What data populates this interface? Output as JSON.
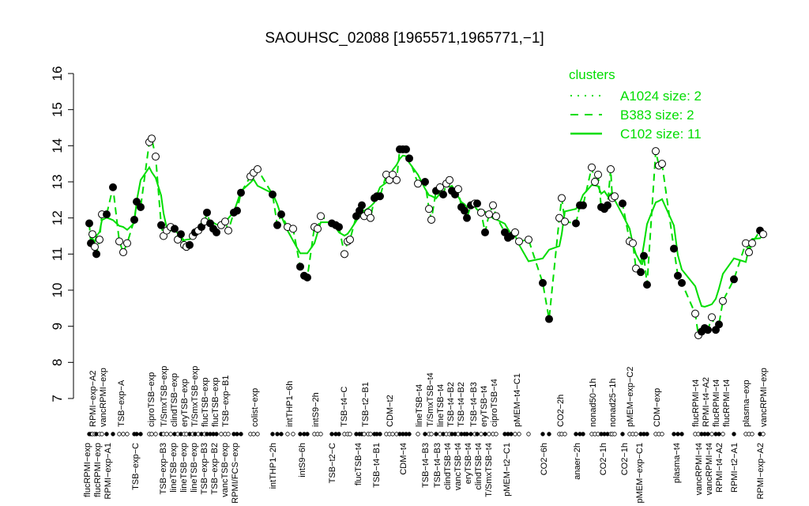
{
  "chart_data": {
    "type": "line",
    "title": "SAOUHSC_02088 [1965571,1965771,−1]",
    "xlabel": "",
    "ylabel": "",
    "ylim": [
      7,
      16
    ],
    "yticks": [
      7,
      8,
      9,
      10,
      11,
      12,
      13,
      14,
      15,
      16
    ],
    "xlim": [
      0,
      880
    ],
    "legend": {
      "title": "clusters",
      "placement": "top-right",
      "entries": [
        {
          "label": "A1024 size: 2",
          "style": "dotted"
        },
        {
          "label": "B383 size: 2",
          "style": "dashed"
        },
        {
          "label": "C102 size: 11",
          "style": "solid"
        }
      ]
    },
    "line_color": "#00dd00",
    "points": [
      [
        13,
        11.85,
        1
      ],
      [
        15,
        11.3,
        1
      ],
      [
        17,
        11.55,
        0
      ],
      [
        20,
        11.2,
        0
      ],
      [
        22,
        11.0,
        1
      ],
      [
        26,
        11.4,
        0
      ],
      [
        29,
        12.1,
        0
      ],
      [
        35,
        12.1,
        1
      ],
      [
        43,
        12.85,
        1
      ],
      [
        51,
        11.35,
        0
      ],
      [
        56,
        11.05,
        0
      ],
      [
        61,
        11.3,
        0
      ],
      [
        70,
        11.95,
        1
      ],
      [
        73,
        12.45,
        1
      ],
      [
        78,
        12.3,
        1
      ],
      [
        89,
        14.1,
        0
      ],
      [
        92,
        14.2,
        0
      ],
      [
        97,
        13.7,
        0
      ],
      [
        104,
        11.8,
        1
      ],
      [
        107,
        11.5,
        0
      ],
      [
        111,
        11.65,
        0
      ],
      [
        116,
        11.75,
        0
      ],
      [
        121,
        11.7,
        1
      ],
      [
        125,
        11.4,
        0
      ],
      [
        129,
        11.55,
        1
      ],
      [
        133,
        11.25,
        0
      ],
      [
        136,
        11.2,
        0
      ],
      [
        140,
        11.25,
        1
      ],
      [
        144,
        11.5,
        0
      ],
      [
        147,
        11.6,
        1
      ],
      [
        151,
        11.65,
        0
      ],
      [
        155,
        11.75,
        1
      ],
      [
        159,
        11.9,
        0
      ],
      [
        162,
        12.15,
        1
      ],
      [
        166,
        11.85,
        1
      ],
      [
        170,
        11.7,
        1
      ],
      [
        174,
        11.6,
        1
      ],
      [
        180,
        11.8,
        0
      ],
      [
        185,
        11.9,
        0
      ],
      [
        189,
        11.65,
        0
      ],
      [
        196,
        12.15,
        1
      ],
      [
        200,
        12.2,
        1
      ],
      [
        205,
        12.7,
        1
      ],
      [
        217,
        13.15,
        0
      ],
      [
        221,
        13.25,
        0
      ],
      [
        226,
        13.35,
        0
      ],
      [
        245,
        12.65,
        1
      ],
      [
        251,
        11.8,
        1
      ],
      [
        256,
        12.1,
        1
      ],
      [
        264,
        11.75,
        0
      ],
      [
        271,
        11.7,
        0
      ],
      [
        280,
        10.65,
        1
      ],
      [
        285,
        10.4,
        1
      ],
      [
        289,
        10.35,
        1
      ],
      [
        298,
        11.75,
        0
      ],
      [
        302,
        11.7,
        0
      ],
      [
        306,
        12.05,
        0
      ],
      [
        320,
        11.85,
        1
      ],
      [
        325,
        11.8,
        1
      ],
      [
        329,
        11.75,
        1
      ],
      [
        336,
        11.0,
        0
      ],
      [
        340,
        11.35,
        0
      ],
      [
        343,
        11.4,
        0
      ],
      [
        351,
        12.05,
        1
      ],
      [
        355,
        12.2,
        1
      ],
      [
        358,
        12.35,
        1
      ],
      [
        361,
        12.05,
        0
      ],
      [
        366,
        12.15,
        0
      ],
      [
        369,
        12.0,
        0
      ],
      [
        374,
        12.55,
        1
      ],
      [
        377,
        12.6,
        1
      ],
      [
        381,
        12.6,
        1
      ],
      [
        389,
        13.2,
        0
      ],
      [
        393,
        13.05,
        0
      ],
      [
        397,
        13.2,
        0
      ],
      [
        402,
        13.05,
        0
      ],
      [
        406,
        13.9,
        1
      ],
      [
        410,
        13.9,
        1
      ],
      [
        414,
        13.9,
        1
      ],
      [
        418,
        13.65,
        1
      ],
      [
        429,
        12.95,
        0
      ],
      [
        438,
        13.0,
        1
      ],
      [
        443,
        12.25,
        0
      ],
      [
        446,
        11.95,
        0
      ],
      [
        452,
        12.75,
        1
      ],
      [
        457,
        12.85,
        0
      ],
      [
        461,
        12.65,
        1
      ],
      [
        465,
        12.95,
        0
      ],
      [
        469,
        13.05,
        0
      ],
      [
        472,
        12.75,
        1
      ],
      [
        476,
        12.65,
        1
      ],
      [
        480,
        12.8,
        0
      ],
      [
        484,
        12.3,
        1
      ],
      [
        488,
        12.2,
        1
      ],
      [
        491,
        12.0,
        1
      ],
      [
        496,
        12.35,
        1
      ],
      [
        501,
        12.4,
        0
      ],
      [
        504,
        12.4,
        1
      ],
      [
        509,
        12.15,
        0
      ],
      [
        514,
        11.6,
        1
      ],
      [
        519,
        12.1,
        0
      ],
      [
        524,
        12.35,
        0
      ],
      [
        528,
        12.05,
        0
      ],
      [
        539,
        11.6,
        1
      ],
      [
        543,
        11.45,
        1
      ],
      [
        547,
        11.5,
        1
      ],
      [
        552,
        11.6,
        0
      ],
      [
        557,
        11.35,
        0
      ],
      [
        569,
        11.4,
        0
      ],
      [
        587,
        10.2,
        1
      ],
      [
        595,
        9.2,
        1
      ],
      [
        608,
        12.0,
        0
      ],
      [
        611,
        12.55,
        0
      ],
      [
        615,
        11.9,
        0
      ],
      [
        629,
        11.85,
        1
      ],
      [
        634,
        12.35,
        1
      ],
      [
        638,
        12.35,
        1
      ],
      [
        649,
        13.4,
        0
      ],
      [
        653,
        13.0,
        0
      ],
      [
        657,
        13.2,
        0
      ],
      [
        661,
        12.3,
        1
      ],
      [
        665,
        12.25,
        1
      ],
      [
        669,
        12.35,
        1
      ],
      [
        673,
        13.35,
        0
      ],
      [
        675,
        12.55,
        0
      ],
      [
        678,
        12.6,
        0
      ],
      [
        688,
        12.4,
        1
      ],
      [
        697,
        11.35,
        0
      ],
      [
        701,
        11.3,
        0
      ],
      [
        705,
        10.6,
        0
      ],
      [
        711,
        10.5,
        1
      ],
      [
        715,
        10.95,
        1
      ],
      [
        719,
        10.15,
        1
      ],
      [
        730,
        13.85,
        0
      ],
      [
        734,
        13.45,
        0
      ],
      [
        738,
        13.5,
        0
      ],
      [
        753,
        11.15,
        1
      ],
      [
        758,
        10.4,
        1
      ],
      [
        763,
        10.2,
        1
      ],
      [
        780,
        9.35,
        0
      ],
      [
        784,
        8.75,
        0
      ],
      [
        788,
        8.85,
        1
      ],
      [
        792,
        8.95,
        1
      ],
      [
        796,
        8.9,
        1
      ],
      [
        801,
        9.25,
        0
      ],
      [
        806,
        8.9,
        1
      ],
      [
        810,
        9.05,
        1
      ],
      [
        815,
        9.7,
        0
      ],
      [
        829,
        10.3,
        1
      ],
      [
        844,
        11.3,
        0
      ],
      [
        848,
        11.05,
        0
      ],
      [
        852,
        11.3,
        0
      ],
      [
        862,
        11.65,
        1
      ],
      [
        866,
        11.55,
        0
      ]
    ],
    "labels_top": [
      [
        17,
        "RPMI−exp−A2"
      ],
      [
        26,
        "vancRPMI−exp"
      ],
      [
        53,
        "TSB−exp−A"
      ],
      [
        91,
        "ciproTSB−exp"
      ],
      [
        107,
        "T/SmxTSB−exp"
      ],
      [
        118,
        "clindTSB−exp"
      ],
      [
        133,
        "eryTSB−exp"
      ],
      [
        145,
        "T/SmxTSB−exp"
      ],
      [
        152,
        "flucTSB−exp"
      ],
      [
        168,
        "flucTSB−exp"
      ],
      [
        184,
        "TSB−exp−B1"
      ],
      [
        222,
        "colist−exp"
      ],
      [
        266,
        "intTHP1−6h"
      ],
      [
        299,
        "intS9−2h"
      ],
      [
        335,
        "TSB−t4−C"
      ],
      [
        362,
        "TSB−t2−B1"
      ],
      [
        393,
        "CDM−t2"
      ],
      [
        430,
        "lineTSB−t4"
      ],
      [
        444,
        "T/SmxTSB−t4"
      ],
      [
        456,
        "lineTSB−t4"
      ],
      [
        467,
        "TSB−t4−B2"
      ],
      [
        482,
        "TSB−t4−B2"
      ],
      [
        499,
        "TSB−t4−B3"
      ],
      [
        510,
        "eryTSB−t4"
      ],
      [
        521,
        "ciproTSB−t4"
      ],
      [
        554,
        "pMEM−t4−C1"
      ],
      [
        609,
        "CO2−2h"
      ],
      [
        650,
        "nonad50−1h"
      ],
      [
        675,
        "nonad25−1h"
      ],
      [
        697,
        "pMEM−exp−C2"
      ],
      [
        731,
        "CDM−exp"
      ],
      [
        780,
        "flucRPMI−t4"
      ],
      [
        785,
        "RPMI−t4−A2"
      ],
      [
        803,
        "flucRPMI−t4"
      ],
      [
        817,
        "flucRPMI−t4"
      ],
      [
        844,
        "plasma−exp"
      ],
      [
        866,
        "vancRPMI−exp"
      ]
    ],
    "labels_bottom": [
      [
        10,
        "flucRPMI−exp"
      ],
      [
        21,
        "flucRPMI−exp"
      ],
      [
        32,
        "RPMI−exp−A1"
      ],
      [
        71,
        "TSB−exp−C"
      ],
      [
        106,
        "TSB−exp−B3"
      ],
      [
        116,
        "lineTSB−exp"
      ],
      [
        128,
        "lineTSB−exp"
      ],
      [
        139,
        "lineTSB−exp"
      ],
      [
        143,
        "TSB−exp−B3"
      ],
      [
        152,
        "TSB−exp−B2"
      ],
      [
        170,
        "vancTSB−exp"
      ],
      [
        197,
        "RPMI/FCS−exp"
      ],
      [
        245,
        "intTHP1−2h"
      ],
      [
        282,
        "intS9−6h"
      ],
      [
        320,
        "TSB−t2−C"
      ],
      [
        353,
        "flucTSB−t4"
      ],
      [
        376,
        "TSB−t4−B1"
      ],
      [
        410,
        "CDM−t4"
      ],
      [
        438,
        "TSB−t4−B3"
      ],
      [
        453,
        "TSB−t4−B3"
      ],
      [
        463,
        "clindTSB−t4"
      ],
      [
        475,
        "vancTSB−t4"
      ],
      [
        489,
        "eryTSB−t4"
      ],
      [
        502,
        "clindTSB−t4"
      ],
      [
        514,
        "T/SmxTSB−t4"
      ],
      [
        541,
        "pMEM−t2−C1"
      ],
      [
        588,
        "CO2−6h"
      ],
      [
        630,
        "anaer−2h"
      ],
      [
        663,
        "CO2−1h"
      ],
      [
        690,
        "CO2−1h"
      ],
      [
        709,
        "pMEM−exp−C1"
      ],
      [
        756,
        "plasma−t4"
      ],
      [
        784,
        "vancRPMI−t4"
      ],
      [
        789,
        "vancRPMI−t4"
      ],
      [
        806,
        "RPMI−t4−A2"
      ],
      [
        829,
        "RPMI−t2−A1"
      ],
      [
        862,
        "RPMI−exp−A2"
      ]
    ]
  }
}
